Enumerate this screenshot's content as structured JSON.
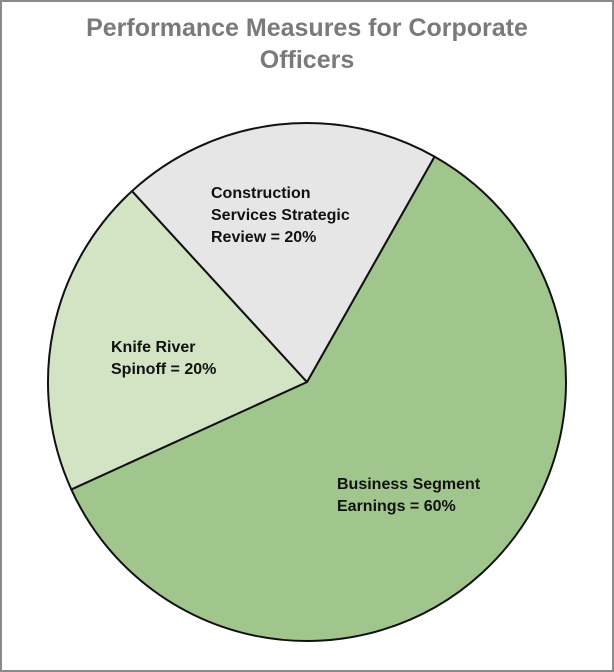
{
  "chart_data": {
    "type": "pie",
    "title": "Performance Measures for Corporate Officers",
    "title_lines": [
      "Performance Measures for Corporate",
      "Officers"
    ],
    "slices": [
      {
        "label_lines": [
          "Business Segment",
          "Earnings = 60%"
        ],
        "value": 60,
        "color": "#a1c68d"
      },
      {
        "label_lines": [
          "Knife River",
          "Spinoff = 20%"
        ],
        "value": 20,
        "color": "#d3e4c4"
      },
      {
        "label_lines": [
          "Construction",
          "Services Strategic",
          "Review = 20%"
        ],
        "value": 20,
        "color": "#e6e6e6"
      }
    ],
    "legend": "none",
    "border_color": "#8a8a8a",
    "title_color": "#7a7a7a"
  }
}
